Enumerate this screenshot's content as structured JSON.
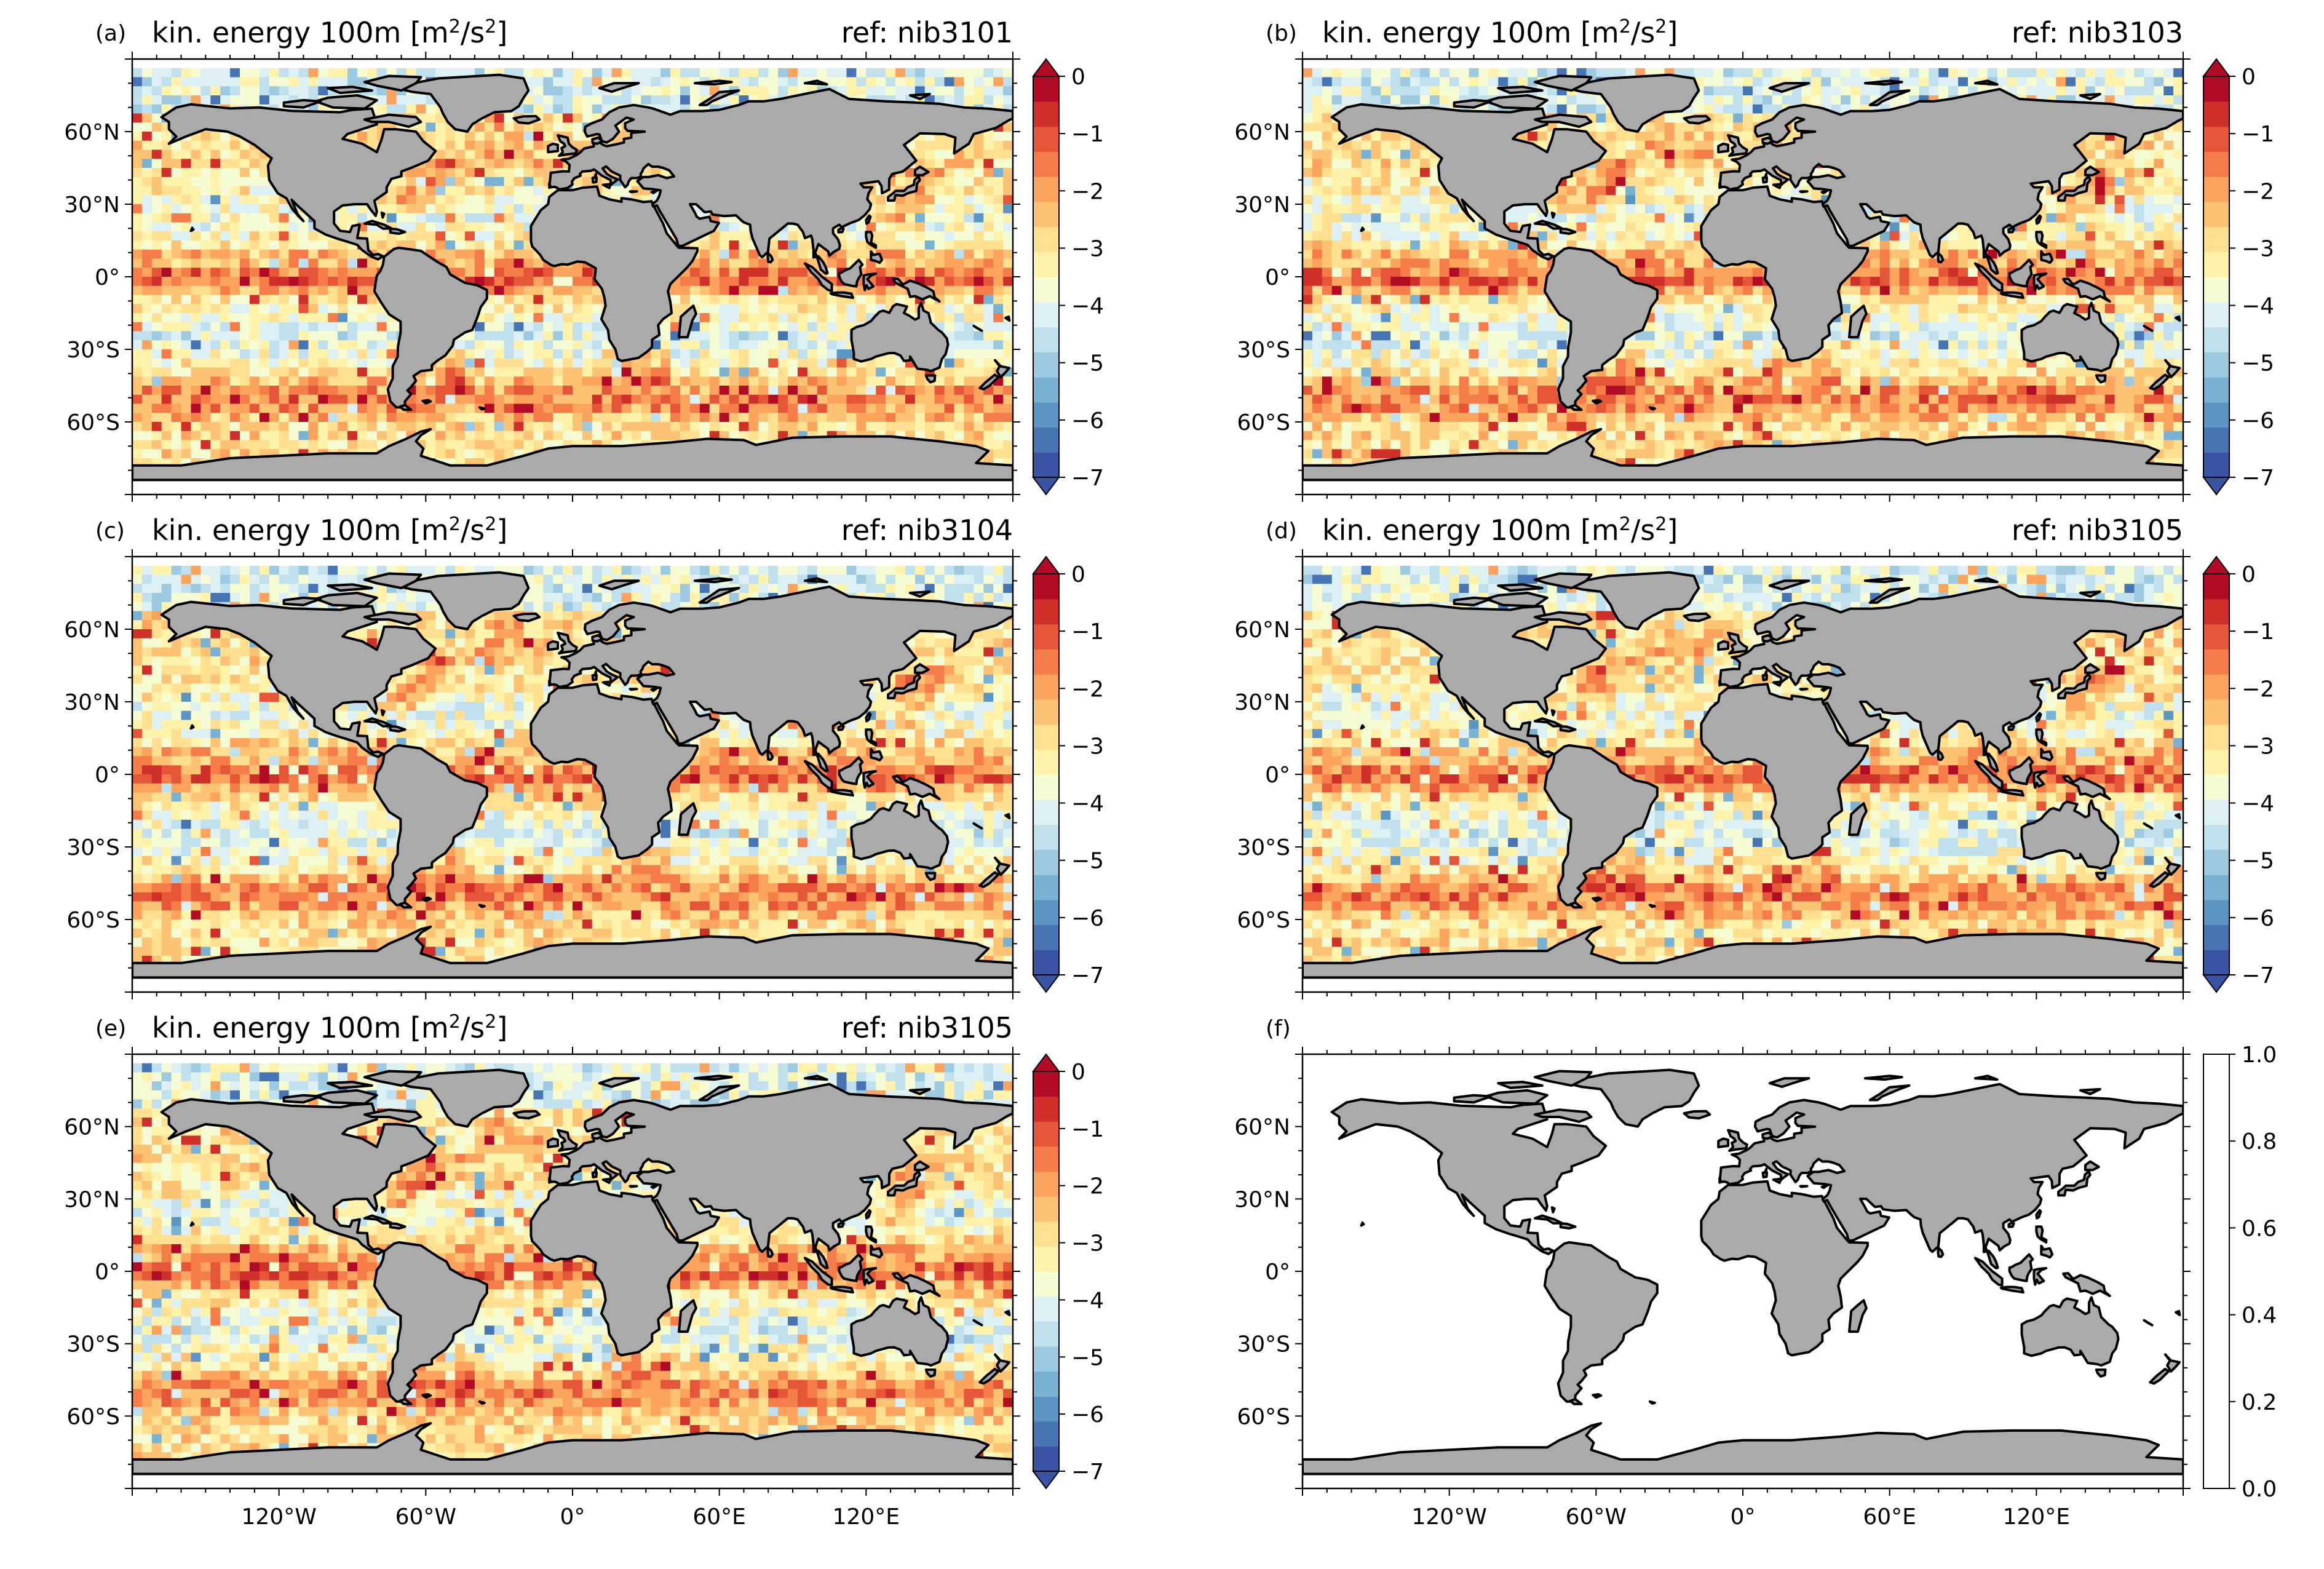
{
  "figure": {
    "panels": [
      {
        "id": "a",
        "panel_label": "(a)",
        "title": "kin. energy 100m [m",
        "title_unit_sup1": "2",
        "title_unit_mid": "/s",
        "title_unit_sup2": "2",
        "title_unit_end": "]",
        "ref": "ref: nib3101",
        "type": "field",
        "colorbar": "log"
      },
      {
        "id": "b",
        "panel_label": "(b)",
        "title": "kin. energy 100m [m",
        "title_unit_sup1": "2",
        "title_unit_mid": "/s",
        "title_unit_sup2": "2",
        "title_unit_end": "]",
        "ref": "ref: nib3103",
        "type": "field",
        "colorbar": "log"
      },
      {
        "id": "c",
        "panel_label": "(c)",
        "title": "kin. energy 100m [m",
        "title_unit_sup1": "2",
        "title_unit_mid": "/s",
        "title_unit_sup2": "2",
        "title_unit_end": "]",
        "ref": "ref: nib3104",
        "type": "field",
        "colorbar": "log"
      },
      {
        "id": "d",
        "panel_label": "(d)",
        "title": "kin. energy 100m [m",
        "title_unit_sup1": "2",
        "title_unit_mid": "/s",
        "title_unit_sup2": "2",
        "title_unit_end": "]",
        "ref": "ref: nib3105",
        "type": "field",
        "colorbar": "log"
      },
      {
        "id": "e",
        "panel_label": "(e)",
        "title": "kin. energy 100m [m",
        "title_unit_sup1": "2",
        "title_unit_mid": "/s",
        "title_unit_sup2": "2",
        "title_unit_end": "]",
        "ref": "ref: nib3105",
        "type": "field",
        "colorbar": "log"
      },
      {
        "id": "f",
        "panel_label": "(f)",
        "title": "",
        "title_unit_sup1": "",
        "title_unit_mid": "",
        "title_unit_sup2": "",
        "title_unit_end": "",
        "ref": "",
        "type": "empty",
        "colorbar": "linear"
      }
    ],
    "lat_ticks": [
      "60°N",
      "30°N",
      "0°",
      "30°S",
      "60°S"
    ],
    "lon_ticks": [
      "120°W",
      "60°W",
      "0°",
      "60°E",
      "120°E"
    ],
    "colorbar_log_ticks": [
      "0",
      "−1",
      "−2",
      "−3",
      "−4",
      "−5",
      "−6",
      "−7"
    ],
    "colorbar_linear_ticks": [
      "1.0",
      "0.8",
      "0.6",
      "0.4",
      "0.2",
      "0.0"
    ],
    "colors": {
      "land": "#aaaaaa",
      "cmap": [
        "#3a54a4",
        "#4774b3",
        "#5d95c5",
        "#7ab2d4",
        "#9ecae1",
        "#bfe0ec",
        "#ddf0f4",
        "#f5fbd2",
        "#fff3ac",
        "#fee090",
        "#fdc374",
        "#fca35d",
        "#f57d4a",
        "#e55538",
        "#d0302a",
        "#b10b26"
      ]
    }
  }
}
